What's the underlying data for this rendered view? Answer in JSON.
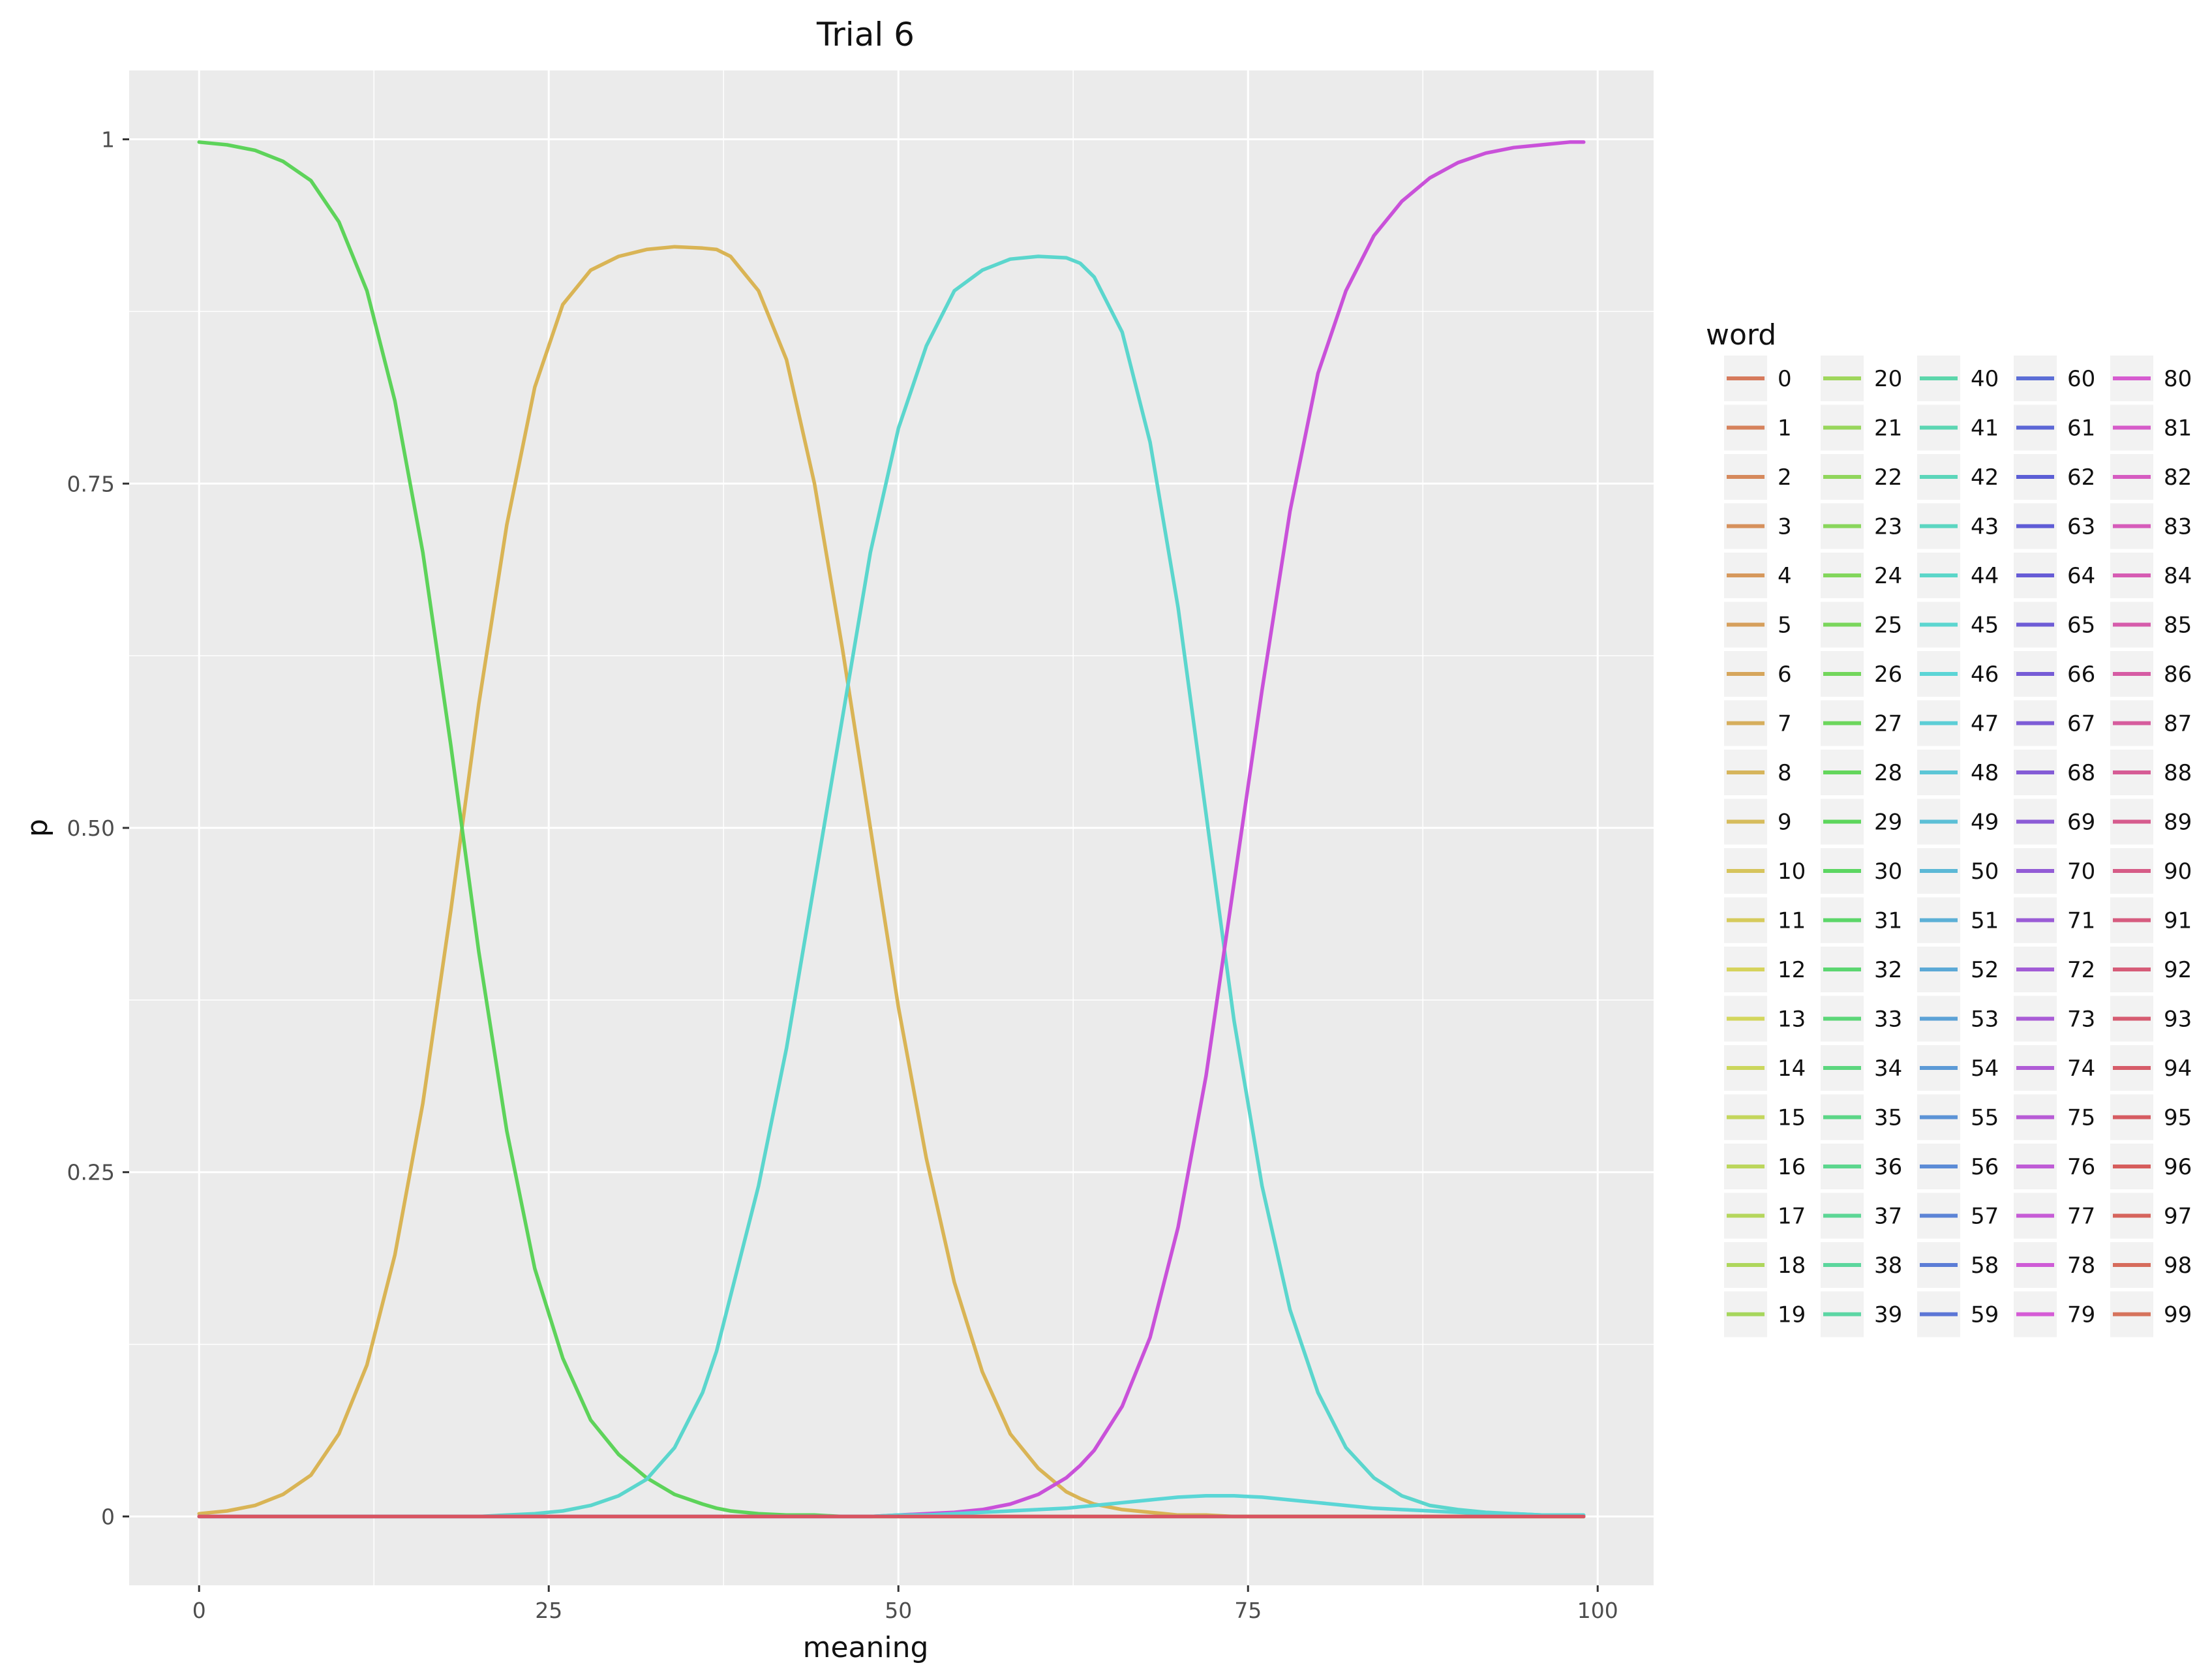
{
  "chart_data": {
    "type": "line",
    "title": "Trial 6",
    "xlabel": "meaning",
    "ylabel": "p",
    "xlim": [
      -5,
      104
    ],
    "ylim": [
      -0.05,
      1.05
    ],
    "x_ticks": [
      0,
      25,
      50,
      75,
      100
    ],
    "x_tick_labels": [
      "0",
      "25",
      "50",
      "75",
      "100"
    ],
    "y_ticks": [
      0,
      0.25,
      0.5,
      0.75,
      1
    ],
    "y_tick_labels": [
      "0",
      "0.25",
      "0.50",
      "0.75",
      "1"
    ],
    "grid": true,
    "panel_background": "#ebebeb",
    "grid_color": "#ffffff",
    "legend_title": "word",
    "legend_position": "right",
    "legend_columns": 5,
    "legend_entries": [
      "0",
      "1",
      "2",
      "3",
      "4",
      "5",
      "6",
      "7",
      "8",
      "9",
      "10",
      "11",
      "12",
      "13",
      "14",
      "15",
      "16",
      "17",
      "18",
      "19",
      "20",
      "21",
      "22",
      "23",
      "24",
      "25",
      "26",
      "27",
      "28",
      "29",
      "30",
      "31",
      "32",
      "33",
      "34",
      "35",
      "36",
      "37",
      "38",
      "39",
      "40",
      "41",
      "42",
      "43",
      "44",
      "45",
      "46",
      "47",
      "48",
      "49",
      "50",
      "51",
      "52",
      "53",
      "54",
      "55",
      "56",
      "57",
      "58",
      "59",
      "60",
      "61",
      "62",
      "63",
      "64",
      "65",
      "66",
      "67",
      "68",
      "69",
      "70",
      "71",
      "72",
      "73",
      "74",
      "75",
      "76",
      "77",
      "78",
      "79",
      "80",
      "81",
      "82",
      "83",
      "84",
      "85",
      "86",
      "87",
      "88",
      "89",
      "90",
      "91",
      "92",
      "93",
      "94",
      "95",
      "96",
      "97",
      "98",
      "99"
    ],
    "x": [
      0,
      2,
      4,
      6,
      8,
      10,
      12,
      14,
      16,
      18,
      20,
      22,
      24,
      26,
      28,
      30,
      32,
      34,
      36,
      37,
      38,
      40,
      42,
      44,
      46,
      48,
      50,
      52,
      54,
      56,
      58,
      60,
      62,
      63,
      64,
      66,
      68,
      70,
      72,
      74,
      76,
      78,
      80,
      82,
      84,
      86,
      88,
      90,
      92,
      94,
      96,
      98,
      99
    ],
    "series": [
      {
        "name": "12",
        "color": "#d9b455",
        "values": [
          0.002,
          0.004,
          0.008,
          0.016,
          0.03,
          0.06,
          0.11,
          0.19,
          0.3,
          0.44,
          0.59,
          0.72,
          0.82,
          0.88,
          0.905,
          0.915,
          0.92,
          0.922,
          0.921,
          0.92,
          0.915,
          0.89,
          0.84,
          0.75,
          0.63,
          0.5,
          0.37,
          0.26,
          0.17,
          0.105,
          0.06,
          0.035,
          0.018,
          0.013,
          0.009,
          0.005,
          0.003,
          0.001,
          0.001,
          0.0,
          0.0,
          0.0,
          0.0,
          0.0,
          0.0,
          0.0,
          0.0,
          0.0,
          0.0,
          0.0,
          0.0,
          0.0,
          0.0
        ]
      },
      {
        "name": "31",
        "color": "#5dd35a",
        "values": [
          0.998,
          0.996,
          0.992,
          0.984,
          0.97,
          0.94,
          0.89,
          0.81,
          0.7,
          0.56,
          0.41,
          0.28,
          0.18,
          0.115,
          0.07,
          0.045,
          0.028,
          0.016,
          0.009,
          0.006,
          0.004,
          0.002,
          0.001,
          0.001,
          0.0,
          0.0,
          0.0,
          0.0,
          0.0,
          0.0,
          0.0,
          0.0,
          0.0,
          0.0,
          0.0,
          0.0,
          0.0,
          0.0,
          0.0,
          0.0,
          0.0,
          0.0,
          0.0,
          0.0,
          0.0,
          0.0,
          0.0,
          0.0,
          0.0,
          0.0,
          0.0,
          0.0,
          0.0
        ]
      },
      {
        "name": "48",
        "color": "#5bd6cd",
        "values": [
          0.0,
          0.0,
          0.0,
          0.0,
          0.0,
          0.0,
          0.0,
          0.0,
          0.0,
          0.0,
          0.0,
          0.001,
          0.002,
          0.004,
          0.008,
          0.015,
          0.027,
          0.05,
          0.09,
          0.12,
          0.16,
          0.24,
          0.34,
          0.46,
          0.58,
          0.7,
          0.79,
          0.85,
          0.89,
          0.905,
          0.913,
          0.915,
          0.914,
          0.91,
          0.9,
          0.86,
          0.78,
          0.66,
          0.51,
          0.36,
          0.24,
          0.15,
          0.09,
          0.05,
          0.028,
          0.015,
          0.008,
          0.005,
          0.003,
          0.002,
          0.001,
          0.001,
          0.0
        ]
      },
      {
        "name": "81",
        "color": "#c951d9",
        "values": [
          0.0,
          0.0,
          0.0,
          0.0,
          0.0,
          0.0,
          0.0,
          0.0,
          0.0,
          0.0,
          0.0,
          0.0,
          0.0,
          0.0,
          0.0,
          0.0,
          0.0,
          0.0,
          0.0,
          0.0,
          0.0,
          0.0,
          0.0,
          0.0,
          0.0,
          0.0,
          0.001,
          0.002,
          0.003,
          0.005,
          0.009,
          0.016,
          0.028,
          0.037,
          0.048,
          0.08,
          0.13,
          0.21,
          0.32,
          0.46,
          0.6,
          0.73,
          0.83,
          0.89,
          0.93,
          0.955,
          0.972,
          0.983,
          0.99,
          0.994,
          0.996,
          0.998,
          0.998
        ]
      },
      {
        "name": "49",
        "color": "#5ad6d6",
        "values": [
          0.0,
          0.0,
          0.0,
          0.0,
          0.0,
          0.0,
          0.0,
          0.0,
          0.0,
          0.0,
          0.0,
          0.0,
          0.0,
          0.0,
          0.0,
          0.0,
          0.0,
          0.0,
          0.0,
          0.0,
          0.0,
          0.0,
          0.0,
          0.0,
          0.0,
          0.0,
          0.001,
          0.001,
          0.002,
          0.003,
          0.004,
          0.005,
          0.006,
          0.007,
          0.008,
          0.01,
          0.012,
          0.014,
          0.015,
          0.015,
          0.014,
          0.012,
          0.01,
          0.008,
          0.006,
          0.005,
          0.004,
          0.003,
          0.002,
          0.002,
          0.001,
          0.001,
          0.001
        ]
      },
      {
        "name": "96",
        "color": "#d95461",
        "values": [
          0.0,
          0.0,
          0.0,
          0.0,
          0.0,
          0.0,
          0.0,
          0.0,
          0.0,
          0.0,
          0.0,
          0.0,
          0.0,
          0.0,
          0.0,
          0.0,
          0.0,
          0.0,
          0.0,
          0.0,
          0.0,
          0.0,
          0.0,
          0.0,
          0.0,
          0.0,
          0.0,
          0.0,
          0.0,
          0.0,
          0.0,
          0.0,
          0.0,
          0.0,
          0.0,
          0.0,
          0.0,
          0.0,
          0.0,
          0.0,
          0.0,
          0.0,
          0.0,
          0.0,
          0.0,
          0.0,
          0.0,
          0.0,
          0.0,
          0.0,
          0.0,
          0.0,
          0.0
        ]
      }
    ]
  }
}
